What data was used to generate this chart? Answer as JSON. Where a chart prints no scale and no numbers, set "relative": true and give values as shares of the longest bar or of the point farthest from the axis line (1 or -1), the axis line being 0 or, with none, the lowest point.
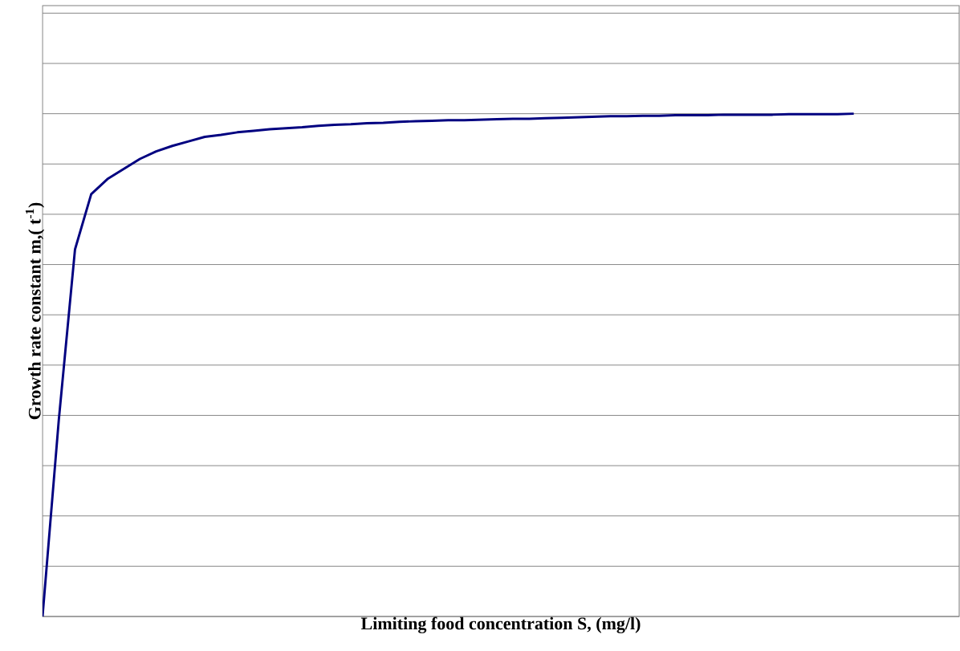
{
  "chart_data": {
    "type": "line",
    "relative": true,
    "xlabel": "Limiting food concentration S, (mg/l)",
    "ylabel": "Growth rate constant m,( t$^{-1}$)",
    "grid": "y",
    "categories": [
      null,
      null,
      null,
      null,
      null,
      null,
      null,
      null,
      null,
      null,
      null,
      null,
      null,
      null,
      null,
      null,
      null,
      null,
      null,
      null,
      null,
      null,
      null,
      null,
      null,
      null,
      null,
      null,
      null,
      null,
      null,
      null,
      null,
      null,
      null,
      null,
      null,
      null,
      null,
      null,
      null,
      null,
      null,
      null,
      null,
      null,
      null,
      null,
      null,
      null,
      null
    ],
    "series": [
      {
        "color": "#000080",
        "values": [
          0,
          0.39,
          0.73,
          0.84,
          0.87,
          0.89,
          0.91,
          0.925,
          0.936,
          0.945,
          0.954,
          0.958,
          0.963,
          0.966,
          0.969,
          0.971,
          0.973,
          0.976,
          0.978,
          0.979,
          0.981,
          0.982,
          0.984,
          0.985,
          0.986,
          0.987,
          0.987,
          0.988,
          0.989,
          0.99,
          0.99,
          0.991,
          0.992,
          0.993,
          0.994,
          0.995,
          0.995,
          0.996,
          0.996,
          0.997,
          0.997,
          0.997,
          0.998,
          0.998,
          0.998,
          0.998,
          0.999,
          0.999,
          0.999,
          0.999,
          1
        ]
      }
    ]
  }
}
